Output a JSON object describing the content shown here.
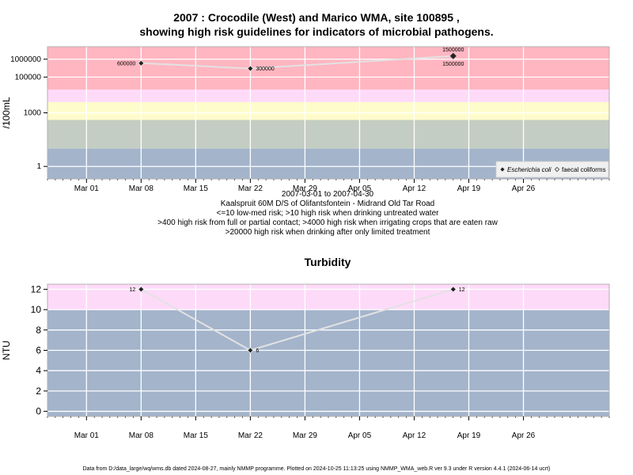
{
  "header": {
    "title_line1": "2007 : Crocodile (West) and Marico WMA, site 100895 ,",
    "title_line2": "showing high risk guidelines for indicators of microbial pathogens."
  },
  "chart_data": [
    {
      "type": "line",
      "title": "",
      "ylabel": "/100mL",
      "xlabel": "",
      "yscale": "log10",
      "ylim": [
        0.2,
        5000000
      ],
      "ytick_labels": [
        "1",
        "1000",
        "100000",
        "1000000"
      ],
      "ytick_values": [
        1,
        1000,
        100000,
        1000000
      ],
      "xlim": [
        "2007-02-24",
        "2007-05-07"
      ],
      "xtick_labels": [
        "Mar 01",
        "Mar 08",
        "Mar 15",
        "Mar 22",
        "Mar 29",
        "Apr 05",
        "Apr 12",
        "Apr 19",
        "Apr 26"
      ],
      "xtick_dates": [
        "2007-03-01",
        "2007-03-08",
        "2007-03-15",
        "2007-03-22",
        "2007-03-29",
        "2007-04-05",
        "2007-04-12",
        "2007-04-19",
        "2007-04-26"
      ],
      "grid": true,
      "bands": [
        {
          "from": 0.2,
          "to": 10,
          "color": "#a3b4cb"
        },
        {
          "from": 10,
          "to": 400,
          "color": "#c4cdc3"
        },
        {
          "from": 400,
          "to": 4000,
          "color": "#fefccb"
        },
        {
          "from": 4000,
          "to": 20000,
          "color": "#fedaf9"
        },
        {
          "from": 20000,
          "to": 5000000,
          "color": "#ffb6c1"
        }
      ],
      "series": [
        {
          "name": "Escherichia coli",
          "marker": "filled-diamond",
          "color": "#e2e2e2",
          "x": [
            "2007-03-08",
            "2007-03-22",
            "2007-04-17"
          ],
          "y": [
            600000,
            300000,
            1500000
          ],
          "labels": [
            "600000",
            "300000",
            "1500000"
          ],
          "label_side": [
            "left",
            "right",
            "above"
          ]
        },
        {
          "name": "faecal coliforms",
          "marker": "open-diamond",
          "color": "#e2e2e2",
          "x": [
            "2007-04-17"
          ],
          "y": [
            1500000
          ],
          "labels": [
            "1500000"
          ],
          "label_side": [
            "below"
          ]
        }
      ],
      "legend": {
        "position": "bottom-right",
        "entries": [
          "Escherichia coli",
          "faecal coliforms"
        ]
      }
    },
    {
      "type": "line",
      "title": "Turbidity",
      "ylabel": "NTU",
      "xlabel": "",
      "yscale": "linear",
      "ylim": [
        -0.5,
        12.5
      ],
      "ytick_values": [
        0,
        2,
        4,
        6,
        8,
        10,
        12
      ],
      "ytick_labels": [
        "0",
        "2",
        "4",
        "6",
        "8",
        "10",
        "12"
      ],
      "xlim": [
        "2007-02-24",
        "2007-05-07"
      ],
      "xtick_labels": [
        "Mar 01",
        "Mar 08",
        "Mar 15",
        "Mar 22",
        "Mar 29",
        "Apr 05",
        "Apr 12",
        "Apr 19",
        "Apr 26"
      ],
      "xtick_dates": [
        "2007-03-01",
        "2007-03-08",
        "2007-03-15",
        "2007-03-22",
        "2007-03-29",
        "2007-04-05",
        "2007-04-12",
        "2007-04-19",
        "2007-04-26"
      ],
      "grid": true,
      "bands": [
        {
          "from": -0.5,
          "to": 10,
          "color": "#a3b4cb"
        },
        {
          "from": 10,
          "to": 12.5,
          "color": "#fedaf9"
        }
      ],
      "series": [
        {
          "name": "",
          "marker": "filled-diamond",
          "color": "#e2e2e2",
          "x": [
            "2007-03-08",
            "2007-03-22",
            "2007-04-17"
          ],
          "y": [
            12,
            6,
            12
          ],
          "labels": [
            "12",
            "6",
            "12"
          ],
          "label_side": [
            "left",
            "right",
            "right"
          ]
        }
      ]
    }
  ],
  "subtitle": {
    "date_range": "2007-03-01 to 2007-04-30",
    "site": "Kaalspruit 60M D/S of Olifantsfontein - Midrand Old Tar Road",
    "line1": "<=10 low-med risk; >10 high risk when drinking untreated water",
    "line2": ">400 high risk from full or partial contact; >4000 high risk when irrigating crops that are eaten raw",
    "line3": ">20000 high risk when drinking after only limited treatment"
  },
  "footer": {
    "text": "Data from D:/data_large/wq/wms.db dated 2024-08-27, mainly NMMP programme. Plotted on 2024-10-25 11:13:25 using NMMP_WMA_web.R ver 9.3 under R version 4.4.1 (2024-06-14 ucrt)"
  }
}
